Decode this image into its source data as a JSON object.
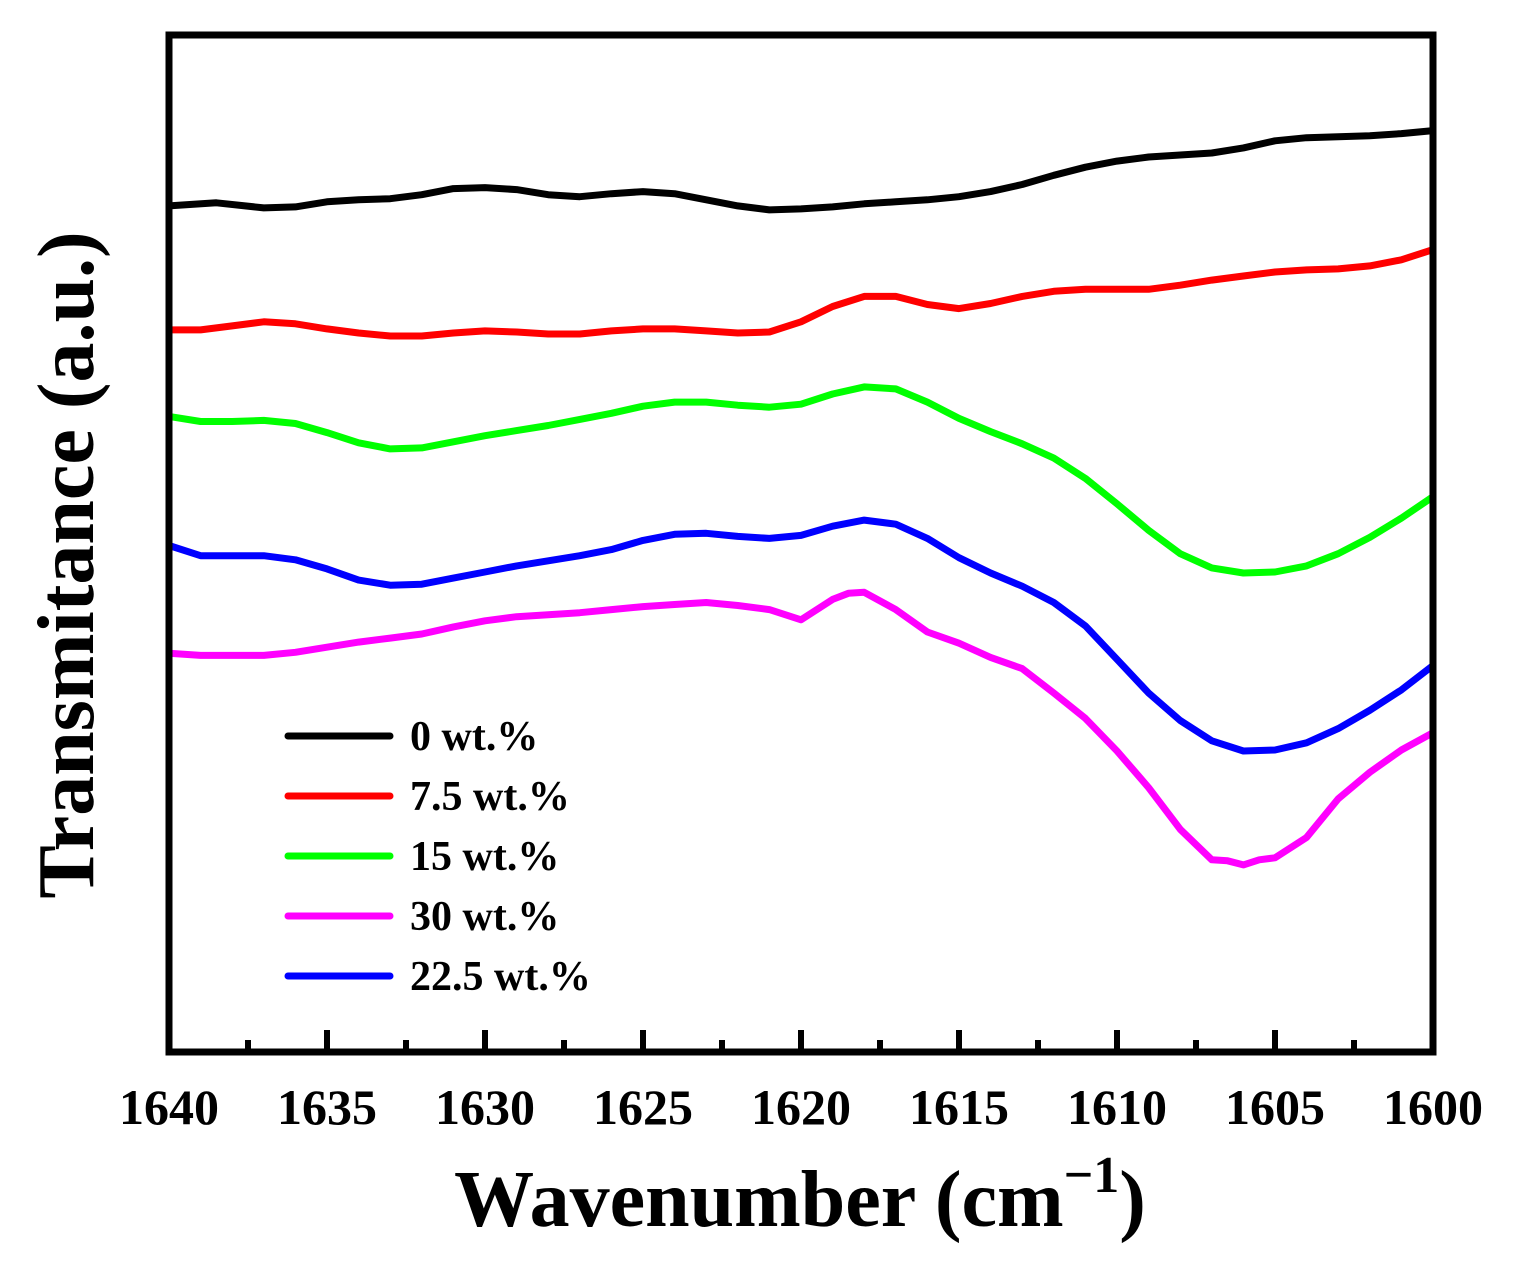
{
  "chart_data": {
    "type": "line",
    "title": "",
    "xlabel": "Wavenumber (cm",
    "xlabel_superscript": "−1",
    "xlabel_close": ")",
    "ylabel": "Transmitance (a.u.)",
    "xlim": [
      1640,
      1600
    ],
    "ylim": [
      0,
      100
    ],
    "x_ticks": [
      1640,
      1635,
      1630,
      1625,
      1620,
      1615,
      1610,
      1605,
      1600
    ],
    "x_tick_labels": [
      "1640",
      "1635",
      "1630",
      "1625",
      "1620",
      "1615",
      "1610",
      "1605",
      "1600"
    ],
    "y_ticks_shown": false,
    "legend_position": "bottom-left",
    "series": [
      {
        "name": "0 wt.%",
        "color": "#000000",
        "x": [
          1640,
          1638.5,
          1637,
          1636,
          1635,
          1634,
          1633,
          1632,
          1631,
          1630,
          1629,
          1628,
          1627,
          1626,
          1625,
          1624,
          1623,
          1622,
          1621,
          1620,
          1619,
          1618,
          1617,
          1616,
          1615,
          1614,
          1613,
          1612,
          1611,
          1610,
          1609,
          1608,
          1607,
          1606,
          1605,
          1604,
          1603,
          1602,
          1601,
          1600
        ],
        "values": [
          83.2,
          83.5,
          83.0,
          83.1,
          83.6,
          83.8,
          83.9,
          84.3,
          84.9,
          85.0,
          84.8,
          84.3,
          84.1,
          84.4,
          84.6,
          84.4,
          83.8,
          83.2,
          82.8,
          82.9,
          83.1,
          83.4,
          83.6,
          83.8,
          84.1,
          84.6,
          85.3,
          86.2,
          87.0,
          87.6,
          88.0,
          88.2,
          88.4,
          88.9,
          89.6,
          89.9,
          90.0,
          90.1,
          90.3,
          90.6
        ]
      },
      {
        "name": "7.5 wt.%",
        "color": "#ff0000",
        "x": [
          1640,
          1639,
          1638,
          1637,
          1636,
          1635,
          1634,
          1633,
          1632,
          1631,
          1630,
          1629,
          1628,
          1627,
          1626,
          1625,
          1624,
          1623,
          1622,
          1621,
          1620,
          1619,
          1618,
          1617,
          1616,
          1615,
          1614,
          1613,
          1612,
          1611,
          1610,
          1609,
          1608,
          1607,
          1606,
          1605,
          1604,
          1603,
          1602,
          1601,
          1600
        ],
        "values": [
          71.0,
          71.0,
          71.4,
          71.8,
          71.6,
          71.1,
          70.7,
          70.4,
          70.4,
          70.7,
          70.9,
          70.8,
          70.6,
          70.6,
          70.9,
          71.1,
          71.1,
          70.9,
          70.7,
          70.8,
          71.8,
          73.3,
          74.3,
          74.3,
          73.5,
          73.1,
          73.6,
          74.3,
          74.8,
          75.0,
          75.0,
          75.0,
          75.4,
          75.9,
          76.3,
          76.7,
          76.9,
          77.0,
          77.3,
          77.9,
          78.9
        ]
      },
      {
        "name": "15 wt.%",
        "color": "#00ff00",
        "x": [
          1640,
          1639,
          1638,
          1637,
          1636,
          1635,
          1634,
          1633,
          1632,
          1631,
          1630,
          1629,
          1628,
          1627,
          1626,
          1625,
          1624,
          1623,
          1622,
          1621,
          1620,
          1619,
          1618,
          1617,
          1616,
          1615,
          1614,
          1613,
          1612,
          1611,
          1610,
          1609,
          1608,
          1607,
          1606,
          1605,
          1604,
          1603,
          1602,
          1601,
          1600
        ],
        "values": [
          62.5,
          62.0,
          62.0,
          62.1,
          61.8,
          60.9,
          59.9,
          59.3,
          59.4,
          60.0,
          60.6,
          61.1,
          61.6,
          62.2,
          62.8,
          63.5,
          63.9,
          63.9,
          63.6,
          63.4,
          63.7,
          64.7,
          65.4,
          65.2,
          63.9,
          62.3,
          61.0,
          59.8,
          58.4,
          56.4,
          53.9,
          51.3,
          49.0,
          47.6,
          47.1,
          47.2,
          47.8,
          49.0,
          50.6,
          52.5,
          54.6
        ]
      },
      {
        "name": "30 wt.%",
        "color": "#ff00ff",
        "x": [
          1640,
          1639,
          1638,
          1637,
          1636,
          1635,
          1634,
          1633,
          1632,
          1631,
          1630,
          1629,
          1628,
          1627,
          1626,
          1625,
          1624,
          1623,
          1622,
          1621,
          1620,
          1619,
          1618.5,
          1618,
          1617,
          1616,
          1615,
          1614,
          1613,
          1612,
          1611,
          1610,
          1609,
          1608,
          1607,
          1606.5,
          1606,
          1605.5,
          1605,
          1604,
          1603,
          1602,
          1601,
          1600
        ],
        "values": [
          39.2,
          39.0,
          39.0,
          39.0,
          39.3,
          39.8,
          40.3,
          40.7,
          41.1,
          41.8,
          42.4,
          42.8,
          43.0,
          43.2,
          43.5,
          43.8,
          44.0,
          44.2,
          43.9,
          43.5,
          42.5,
          44.5,
          45.1,
          45.2,
          43.5,
          41.3,
          40.2,
          38.8,
          37.7,
          35.3,
          32.8,
          29.6,
          26.0,
          21.9,
          18.9,
          18.8,
          18.4,
          18.9,
          19.1,
          21.1,
          24.9,
          27.5,
          29.7,
          31.4
        ]
      },
      {
        "name": "22.5 wt.%",
        "color": "#0000ff",
        "x": [
          1640,
          1639,
          1638,
          1637,
          1636,
          1635,
          1634,
          1633,
          1632,
          1631,
          1630,
          1629,
          1628,
          1627,
          1626,
          1625,
          1624,
          1623,
          1622,
          1621,
          1620,
          1619,
          1618,
          1617,
          1616,
          1615,
          1614,
          1613,
          1612,
          1611,
          1610,
          1609,
          1608,
          1607,
          1606,
          1605,
          1604,
          1603,
          1602,
          1601,
          1600
        ],
        "values": [
          49.8,
          48.8,
          48.8,
          48.8,
          48.4,
          47.5,
          46.4,
          45.9,
          46.0,
          46.6,
          47.2,
          47.8,
          48.3,
          48.8,
          49.4,
          50.3,
          50.9,
          51.0,
          50.7,
          50.5,
          50.8,
          51.7,
          52.3,
          51.9,
          50.5,
          48.6,
          47.1,
          45.8,
          44.2,
          41.9,
          38.6,
          35.3,
          32.6,
          30.6,
          29.6,
          29.7,
          30.4,
          31.8,
          33.6,
          35.6,
          38.0
        ]
      }
    ]
  }
}
